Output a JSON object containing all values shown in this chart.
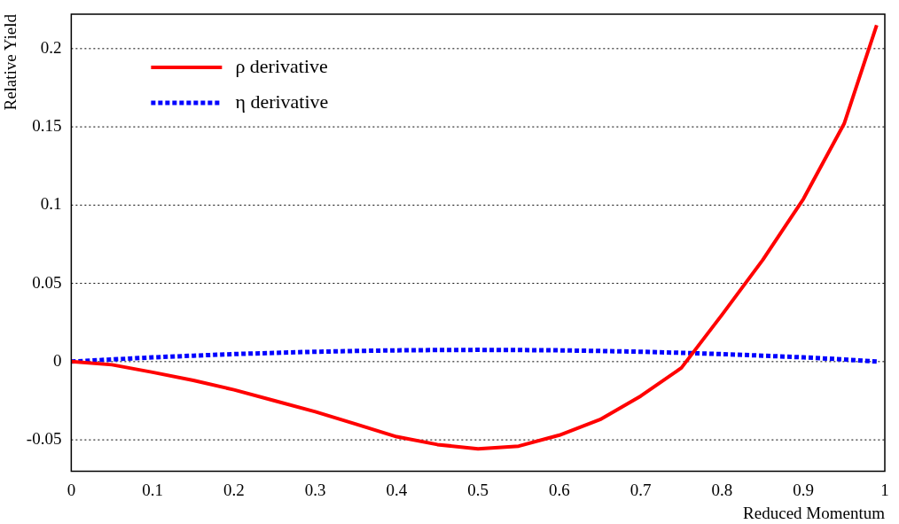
{
  "chart_data": {
    "type": "line",
    "xlabel": "Reduced Momentum",
    "ylabel": "Relative Yield",
    "x": [
      0,
      0.05,
      0.1,
      0.15,
      0.2,
      0.25,
      0.3,
      0.35,
      0.4,
      0.45,
      0.5,
      0.55,
      0.6,
      0.65,
      0.7,
      0.75,
      0.8,
      0.85,
      0.9,
      0.95,
      0.99
    ],
    "series": [
      {
        "name": "ρ derivative",
        "color": "#ff0000",
        "line_style": "solid",
        "values": [
          0,
          -0.002,
          -0.0068,
          -0.012,
          -0.018,
          -0.025,
          -0.032,
          -0.04,
          -0.048,
          -0.053,
          -0.0557,
          -0.054,
          -0.047,
          -0.037,
          -0.022,
          -0.004,
          0.03,
          0.065,
          0.104,
          0.152,
          0.215
        ]
      },
      {
        "name": "η derivative",
        "color": "#0000ff",
        "line_style": "dotted",
        "values": [
          0,
          0.0014,
          0.0027,
          0.0038,
          0.0048,
          0.0056,
          0.0063,
          0.0068,
          0.0072,
          0.0074,
          0.0075,
          0.0074,
          0.0072,
          0.0068,
          0.0063,
          0.0056,
          0.0048,
          0.0038,
          0.0027,
          0.0014,
          0
        ]
      }
    ],
    "xlim": [
      0,
      1
    ],
    "xticks": [
      0,
      0.1,
      0.2,
      0.3,
      0.4,
      0.5,
      0.6,
      0.7,
      0.8,
      0.9,
      1
    ],
    "ylim": [
      -0.07,
      0.222
    ],
    "yticks": [
      -0.05,
      0,
      0.05,
      0.1,
      0.15,
      0.2
    ],
    "grid": "y",
    "legend": "top left",
    "marker": "none"
  }
}
